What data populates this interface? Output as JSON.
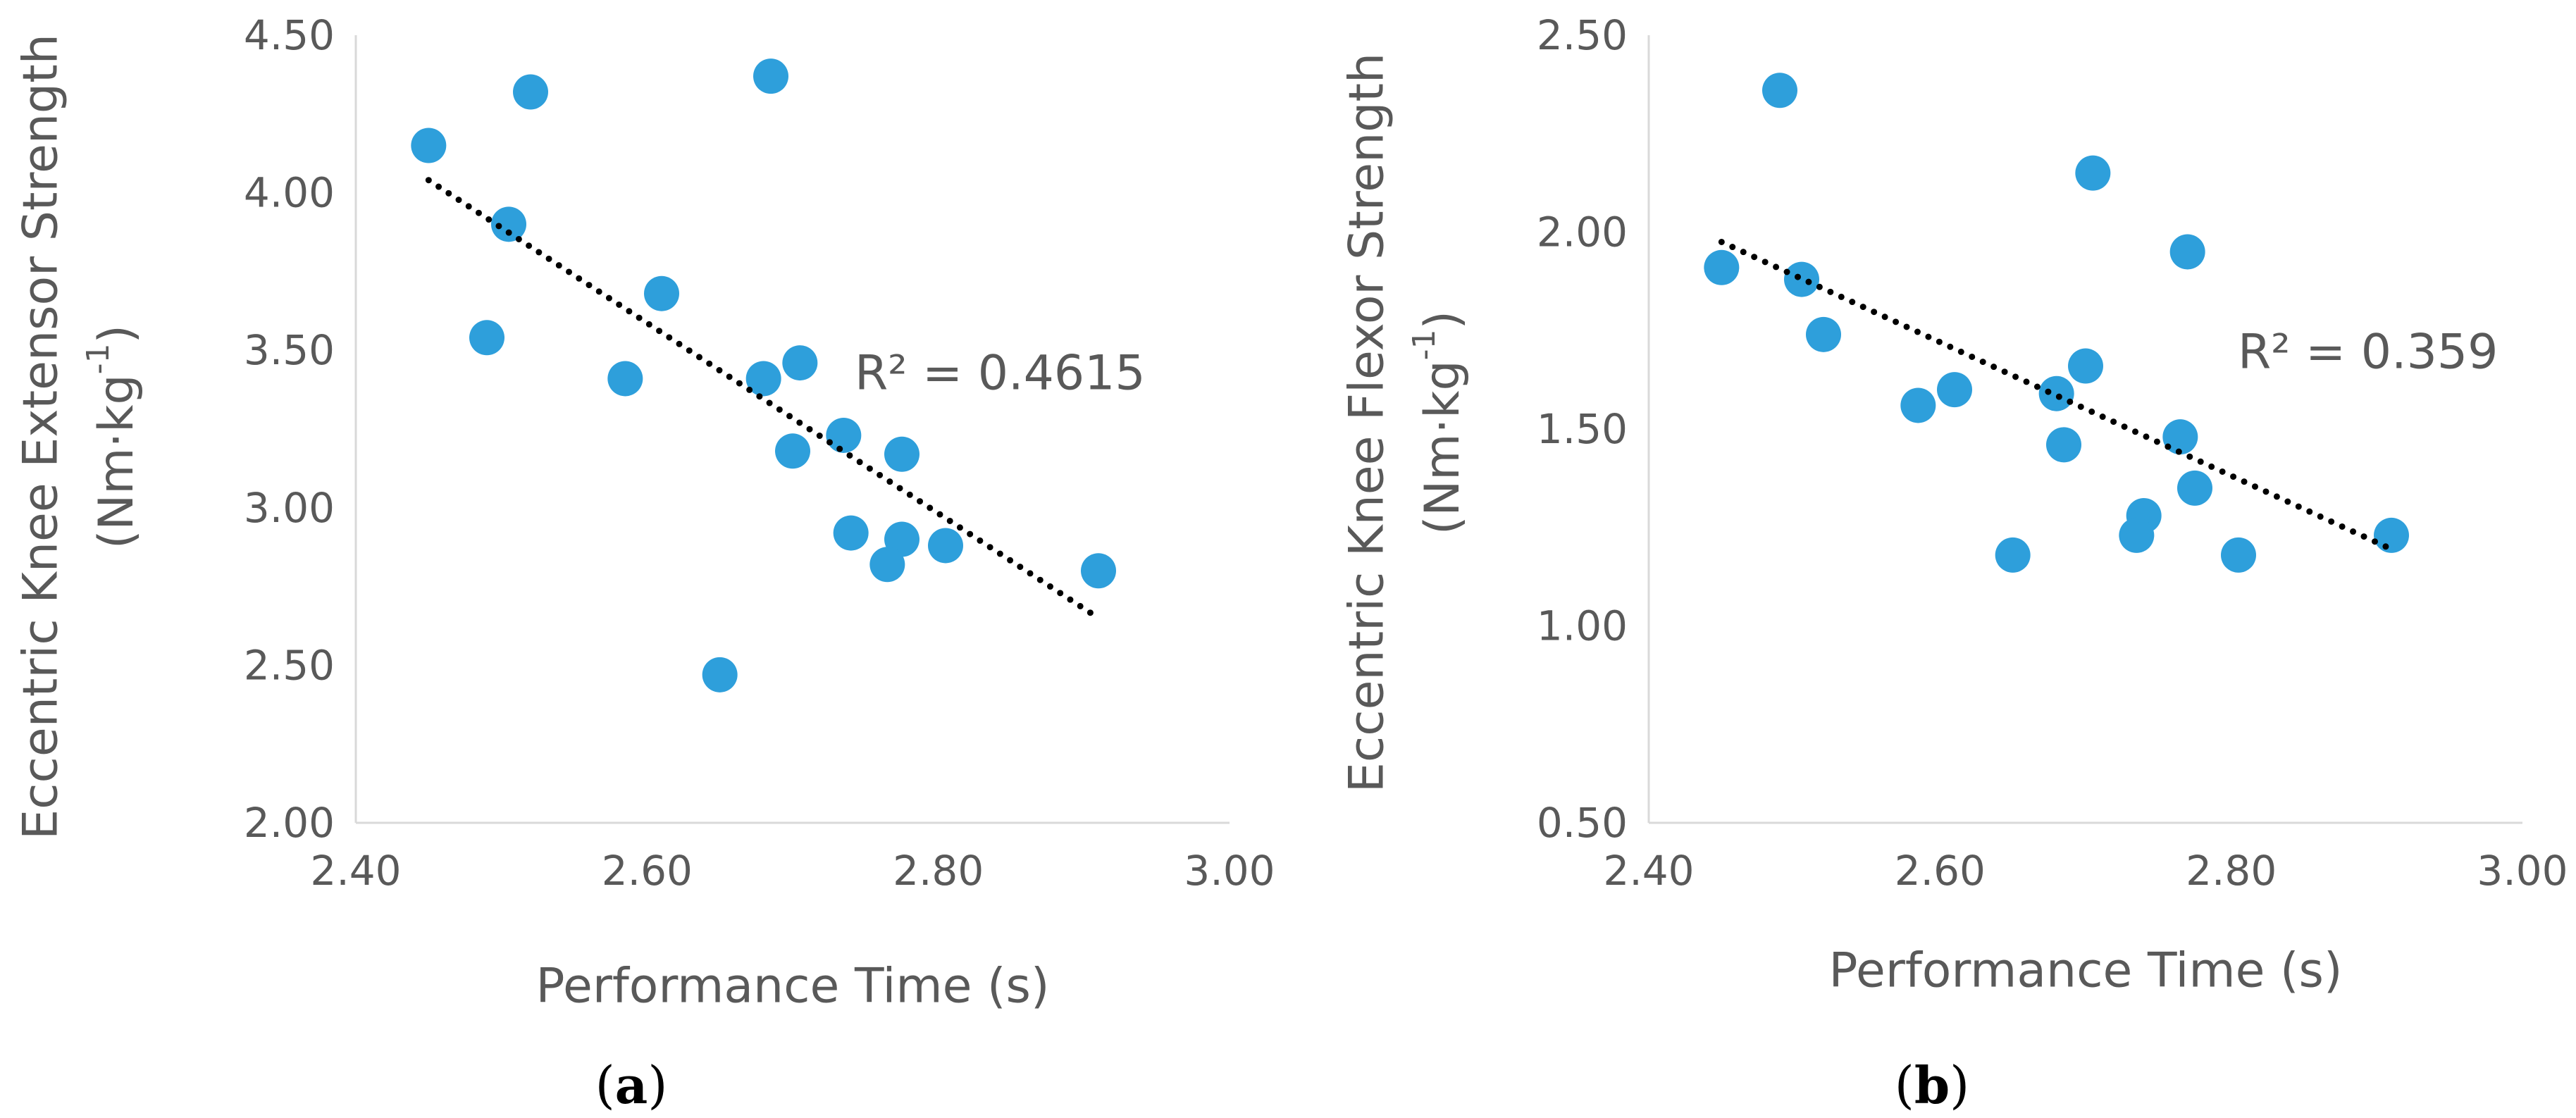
{
  "colors": {
    "marker": "#2E9FDB",
    "axis": "#D9D9D9",
    "text": "#595959",
    "trend": "#000000"
  },
  "chart_data": [
    {
      "panel": "a",
      "type": "scatter",
      "xlabel": "Performance Time (s)",
      "ylabel_line1": "Eccentric Knee Extensor Strength",
      "ylabel_unit_prefix": "(Nm·kg",
      "ylabel_unit_sup": "-1",
      "ylabel_unit_suffix": ")",
      "xlim": [
        2.4,
        3.0
      ],
      "ylim": [
        2.0,
        4.5
      ],
      "xticks": [
        2.4,
        2.6,
        2.8,
        3.0
      ],
      "xtick_labels": [
        "2.40",
        "2.60",
        "2.80",
        "3.00"
      ],
      "yticks": [
        2.0,
        2.5,
        3.0,
        3.5,
        4.0,
        4.5
      ],
      "ytick_labels": [
        "2.00",
        "2.50",
        "3.00",
        "3.50",
        "4.00",
        "4.50"
      ],
      "points": [
        {
          "x": 2.45,
          "y": 4.15
        },
        {
          "x": 2.52,
          "y": 4.32
        },
        {
          "x": 2.685,
          "y": 4.37
        },
        {
          "x": 2.505,
          "y": 3.9
        },
        {
          "x": 2.49,
          "y": 3.54
        },
        {
          "x": 2.61,
          "y": 3.68
        },
        {
          "x": 2.585,
          "y": 3.41
        },
        {
          "x": 2.68,
          "y": 3.41
        },
        {
          "x": 2.705,
          "y": 3.46
        },
        {
          "x": 2.7,
          "y": 3.18
        },
        {
          "x": 2.735,
          "y": 3.23
        },
        {
          "x": 2.775,
          "y": 3.17
        },
        {
          "x": 2.74,
          "y": 2.92
        },
        {
          "x": 2.775,
          "y": 2.9
        },
        {
          "x": 2.765,
          "y": 2.82
        },
        {
          "x": 2.805,
          "y": 2.88
        },
        {
          "x": 2.91,
          "y": 2.8
        },
        {
          "x": 2.65,
          "y": 2.47
        }
      ],
      "trendline": {
        "x_start": 2.45,
        "y_start": 4.04,
        "x_end": 2.91,
        "y_end": 2.65
      },
      "r_squared": "R² = 0.4615",
      "caption_open": "(",
      "caption_letter": "a",
      "caption_close": ")"
    },
    {
      "panel": "b",
      "type": "scatter",
      "xlabel": "Performance Time (s)",
      "ylabel_line1": "Eccentric Knee Flexor Strength",
      "ylabel_unit_prefix": "(Nm·kg",
      "ylabel_unit_sup": "-1",
      "ylabel_unit_suffix": ")",
      "xlim": [
        2.4,
        3.0
      ],
      "ylim": [
        0.5,
        2.5
      ],
      "xticks": [
        2.4,
        2.6,
        2.8,
        3.0
      ],
      "xtick_labels": [
        "2.40",
        "2.60",
        "2.80",
        "3.00"
      ],
      "yticks": [
        0.5,
        1.0,
        1.5,
        2.0,
        2.5
      ],
      "ytick_labels": [
        "0.50",
        "1.00",
        "1.50",
        "2.00",
        "2.50"
      ],
      "points": [
        {
          "x": 2.49,
          "y": 2.36
        },
        {
          "x": 2.705,
          "y": 2.15
        },
        {
          "x": 2.77,
          "y": 1.95
        },
        {
          "x": 2.45,
          "y": 1.91
        },
        {
          "x": 2.505,
          "y": 1.88
        },
        {
          "x": 2.52,
          "y": 1.74
        },
        {
          "x": 2.7,
          "y": 1.66
        },
        {
          "x": 2.61,
          "y": 1.6
        },
        {
          "x": 2.585,
          "y": 1.56
        },
        {
          "x": 2.68,
          "y": 1.59
        },
        {
          "x": 2.685,
          "y": 1.46
        },
        {
          "x": 2.765,
          "y": 1.48
        },
        {
          "x": 2.775,
          "y": 1.35
        },
        {
          "x": 2.74,
          "y": 1.28
        },
        {
          "x": 2.735,
          "y": 1.23
        },
        {
          "x": 2.65,
          "y": 1.18
        },
        {
          "x": 2.805,
          "y": 1.18
        },
        {
          "x": 2.91,
          "y": 1.23
        }
      ],
      "trendline": {
        "x_start": 2.45,
        "y_start": 1.975,
        "x_end": 2.91,
        "y_end": 1.195
      },
      "r_squared": "R² = 0.359",
      "caption_open": "(",
      "caption_letter": "b",
      "caption_close": ")"
    }
  ]
}
